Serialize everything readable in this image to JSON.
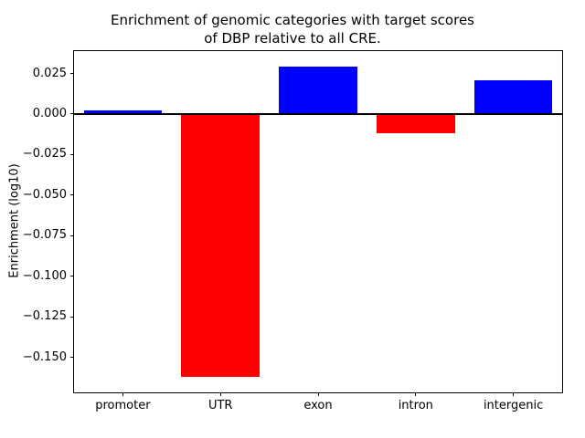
{
  "chart_data": {
    "type": "bar",
    "title": "Enrichment of genomic categories with target scores\nof DBP relative to all CRE.",
    "ylabel": "Enrichment (log10)",
    "xlabel": "",
    "categories": [
      "promoter",
      "UTR",
      "exon",
      "intron",
      "intergenic"
    ],
    "values": [
      0.002,
      -0.162,
      0.029,
      -0.012,
      0.021
    ],
    "bar_colors": [
      "#0000ff",
      "#ff0000",
      "#0000ff",
      "#ff0000",
      "#0000ff"
    ],
    "positive_color": "#0000ff",
    "negative_color": "#ff0000",
    "yticks": [
      0.025,
      0.0,
      -0.025,
      -0.05,
      -0.075,
      -0.1,
      -0.125,
      -0.15
    ],
    "ytick_labels": [
      "0.025",
      "0.000",
      "−0.025",
      "−0.050",
      "−0.075",
      "−0.100",
      "−0.125",
      "−0.150"
    ],
    "ylim": [
      -0.1716,
      0.0388
    ],
    "zero_line": true,
    "grid": false,
    "legend": null
  }
}
